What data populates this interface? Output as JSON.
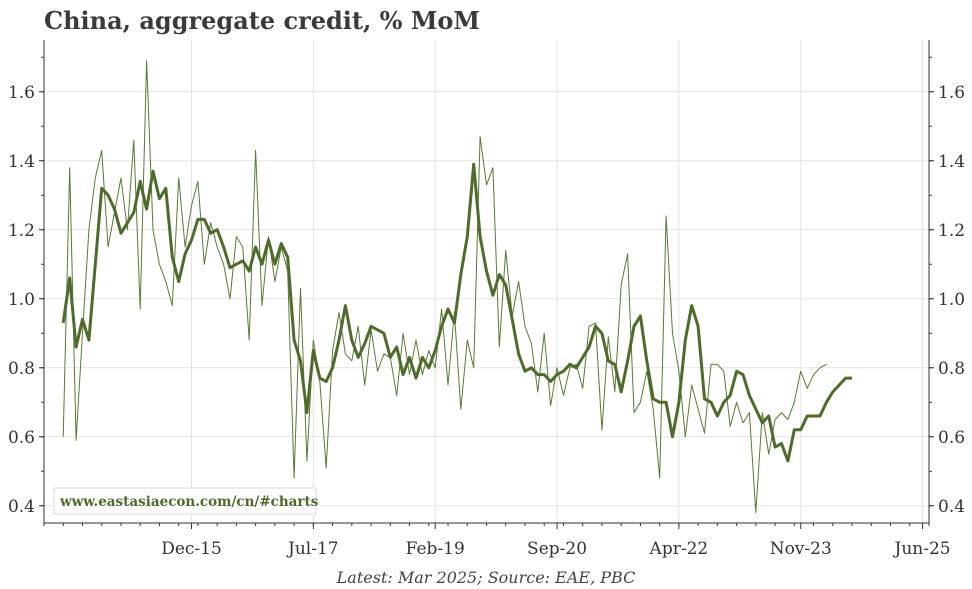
{
  "title": "China, aggregate credit, % MoM",
  "caption": "Latest: Mar 2025; Source: EAE, PBC",
  "watermark": "www.eastasiaecon.com/cn/#charts",
  "colors": {
    "raw_series": "#587a34",
    "smoothed_series": "#4e6b2c",
    "grid": "#e3e3e3",
    "axis": "#333333"
  },
  "chart_data": {
    "type": "line",
    "title": "China, aggregate credit, % MoM",
    "xlabel": "",
    "ylabel": "",
    "ylim": [
      0.35,
      1.75
    ],
    "xlim": [
      "2014-01",
      "2025-07"
    ],
    "yticks": [
      0.4,
      0.6,
      0.8,
      1.0,
      1.2,
      1.4,
      1.6
    ],
    "ytick_labels": [
      "0.4",
      "0.6",
      "0.8",
      "1.0",
      "1.2",
      "1.4",
      "1.6"
    ],
    "xticks": [
      "2015-12",
      "2017-07",
      "2019-02",
      "2020-09",
      "2022-04",
      "2023-11",
      "2025-06"
    ],
    "xtick_labels": [
      "Dec-15",
      "Jul-17",
      "Feb-19",
      "Sep-20",
      "Apr-22",
      "Nov-23",
      "Jun-25"
    ],
    "grid": true,
    "legend": "none",
    "y_axis_sides": [
      "left",
      "right"
    ],
    "series": [
      {
        "style": "thin",
        "points": [
          [
            "2014-04",
            0.6
          ],
          [
            "2014-05",
            1.38
          ],
          [
            "2014-06",
            0.59
          ],
          [
            "2014-07",
            0.9
          ],
          [
            "2014-08",
            1.2
          ],
          [
            "2014-09",
            1.35
          ],
          [
            "2014-10",
            1.43
          ],
          [
            "2014-11",
            1.15
          ],
          [
            "2014-12",
            1.25
          ],
          [
            "2015-01",
            1.35
          ],
          [
            "2015-02",
            1.2
          ],
          [
            "2015-03",
            1.46
          ],
          [
            "2015-04",
            0.97
          ],
          [
            "2015-05",
            1.69
          ],
          [
            "2015-06",
            1.2
          ],
          [
            "2015-07",
            1.1
          ],
          [
            "2015-08",
            1.05
          ],
          [
            "2015-09",
            0.98
          ],
          [
            "2015-10",
            1.35
          ],
          [
            "2015-11",
            1.15
          ],
          [
            "2015-12",
            1.27
          ],
          [
            "2016-01",
            1.34
          ],
          [
            "2016-02",
            1.1
          ],
          [
            "2016-03",
            1.22
          ],
          [
            "2016-04",
            1.15
          ],
          [
            "2016-05",
            1.1
          ],
          [
            "2016-06",
            1.0
          ],
          [
            "2016-07",
            1.18
          ],
          [
            "2016-08",
            1.15
          ],
          [
            "2016-09",
            0.88
          ],
          [
            "2016-10",
            1.43
          ],
          [
            "2016-11",
            0.98
          ],
          [
            "2016-12",
            1.18
          ],
          [
            "2017-01",
            1.05
          ],
          [
            "2017-02",
            1.15
          ],
          [
            "2017-03",
            1.08
          ],
          [
            "2017-04",
            0.48
          ],
          [
            "2017-05",
            1.03
          ],
          [
            "2017-06",
            0.53
          ],
          [
            "2017-07",
            0.88
          ],
          [
            "2017-08",
            0.76
          ],
          [
            "2017-09",
            0.51
          ],
          [
            "2017-10",
            0.85
          ],
          [
            "2017-11",
            0.96
          ],
          [
            "2017-12",
            0.84
          ],
          [
            "2018-01",
            0.82
          ],
          [
            "2018-02",
            0.92
          ],
          [
            "2018-03",
            0.75
          ],
          [
            "2018-04",
            0.91
          ],
          [
            "2018-05",
            0.79
          ],
          [
            "2018-06",
            0.84
          ],
          [
            "2018-07",
            0.83
          ],
          [
            "2018-08",
            0.72
          ],
          [
            "2018-09",
            0.9
          ],
          [
            "2018-10",
            0.78
          ],
          [
            "2018-11",
            0.88
          ],
          [
            "2018-12",
            0.78
          ],
          [
            "2019-01",
            0.85
          ],
          [
            "2019-02",
            0.8
          ],
          [
            "2019-03",
            0.97
          ],
          [
            "2019-04",
            0.75
          ],
          [
            "2019-05",
            0.96
          ],
          [
            "2019-06",
            0.68
          ],
          [
            "2019-07",
            0.88
          ],
          [
            "2019-08",
            0.8
          ],
          [
            "2019-09",
            1.47
          ],
          [
            "2019-10",
            1.33
          ],
          [
            "2019-11",
            1.38
          ],
          [
            "2019-12",
            0.86
          ],
          [
            "2020-01",
            1.14
          ],
          [
            "2020-02",
            0.95
          ],
          [
            "2020-03",
            1.05
          ],
          [
            "2020-04",
            0.92
          ],
          [
            "2020-05",
            0.87
          ],
          [
            "2020-06",
            0.73
          ],
          [
            "2020-07",
            0.9
          ],
          [
            "2020-08",
            0.69
          ],
          [
            "2020-09",
            0.8
          ],
          [
            "2020-10",
            0.72
          ],
          [
            "2020-11",
            0.8
          ],
          [
            "2020-12",
            0.81
          ],
          [
            "2021-01",
            0.74
          ],
          [
            "2021-02",
            0.92
          ],
          [
            "2021-03",
            0.93
          ],
          [
            "2021-04",
            0.62
          ],
          [
            "2021-05",
            0.89
          ],
          [
            "2021-06",
            0.73
          ],
          [
            "2021-07",
            1.04
          ],
          [
            "2021-08",
            1.13
          ],
          [
            "2021-09",
            0.67
          ],
          [
            "2021-10",
            0.7
          ],
          [
            "2021-11",
            0.79
          ],
          [
            "2021-12",
            0.68
          ],
          [
            "2022-01",
            0.48
          ],
          [
            "2022-02",
            1.24
          ],
          [
            "2022-03",
            0.9
          ],
          [
            "2022-04",
            0.79
          ],
          [
            "2022-05",
            0.6
          ],
          [
            "2022-06",
            0.75
          ],
          [
            "2022-07",
            0.68
          ],
          [
            "2022-08",
            0.61
          ],
          [
            "2022-09",
            0.81
          ],
          [
            "2022-10",
            0.81
          ],
          [
            "2022-11",
            0.79
          ],
          [
            "2022-12",
            0.63
          ],
          [
            "2023-01",
            0.7
          ],
          [
            "2023-02",
            0.64
          ],
          [
            "2023-03",
            0.67
          ],
          [
            "2023-04",
            0.38
          ],
          [
            "2023-05",
            0.67
          ],
          [
            "2023-06",
            0.55
          ],
          [
            "2023-07",
            0.65
          ],
          [
            "2023-08",
            0.67
          ],
          [
            "2023-09",
            0.65
          ],
          [
            "2023-10",
            0.7
          ],
          [
            "2023-11",
            0.79
          ],
          [
            "2023-12",
            0.74
          ],
          [
            "2024-01",
            0.78
          ],
          [
            "2024-02",
            0.8
          ],
          [
            "2024-03",
            0.81
          ]
        ]
      },
      {
        "style": "thick",
        "points": [
          [
            "2014-04",
            0.93
          ],
          [
            "2014-05",
            1.06
          ],
          [
            "2014-06",
            0.86
          ],
          [
            "2014-07",
            0.94
          ],
          [
            "2014-08",
            0.88
          ],
          [
            "2014-09",
            1.1
          ],
          [
            "2014-10",
            1.32
          ],
          [
            "2014-11",
            1.3
          ],
          [
            "2014-12",
            1.26
          ],
          [
            "2015-01",
            1.19
          ],
          [
            "2015-02",
            1.22
          ],
          [
            "2015-03",
            1.25
          ],
          [
            "2015-04",
            1.34
          ],
          [
            "2015-05",
            1.26
          ],
          [
            "2015-06",
            1.37
          ],
          [
            "2015-07",
            1.29
          ],
          [
            "2015-08",
            1.32
          ],
          [
            "2015-09",
            1.12
          ],
          [
            "2015-10",
            1.05
          ],
          [
            "2015-11",
            1.13
          ],
          [
            "2015-12",
            1.17
          ],
          [
            "2016-01",
            1.23
          ],
          [
            "2016-02",
            1.23
          ],
          [
            "2016-03",
            1.19
          ],
          [
            "2016-04",
            1.2
          ],
          [
            "2016-05",
            1.15
          ],
          [
            "2016-06",
            1.09
          ],
          [
            "2016-07",
            1.1
          ],
          [
            "2016-08",
            1.11
          ],
          [
            "2016-09",
            1.08
          ],
          [
            "2016-10",
            1.15
          ],
          [
            "2016-11",
            1.1
          ],
          [
            "2016-12",
            1.17
          ],
          [
            "2017-01",
            1.1
          ],
          [
            "2017-02",
            1.16
          ],
          [
            "2017-03",
            1.12
          ],
          [
            "2017-04",
            0.88
          ],
          [
            "2017-05",
            0.82
          ],
          [
            "2017-06",
            0.67
          ],
          [
            "2017-07",
            0.85
          ],
          [
            "2017-08",
            0.77
          ],
          [
            "2017-09",
            0.76
          ],
          [
            "2017-10",
            0.8
          ],
          [
            "2017-11",
            0.88
          ],
          [
            "2017-12",
            0.98
          ],
          [
            "2018-01",
            0.88
          ],
          [
            "2018-02",
            0.83
          ],
          [
            "2018-03",
            0.87
          ],
          [
            "2018-04",
            0.92
          ],
          [
            "2018-05",
            0.91
          ],
          [
            "2018-06",
            0.9
          ],
          [
            "2018-07",
            0.83
          ],
          [
            "2018-08",
            0.86
          ],
          [
            "2018-09",
            0.78
          ],
          [
            "2018-10",
            0.83
          ],
          [
            "2018-11",
            0.77
          ],
          [
            "2018-12",
            0.83
          ],
          [
            "2019-01",
            0.8
          ],
          [
            "2019-02",
            0.85
          ],
          [
            "2019-03",
            0.92
          ],
          [
            "2019-04",
            0.97
          ],
          [
            "2019-05",
            0.93
          ],
          [
            "2019-06",
            1.07
          ],
          [
            "2019-07",
            1.18
          ],
          [
            "2019-08",
            1.39
          ],
          [
            "2019-09",
            1.18
          ],
          [
            "2019-10",
            1.08
          ],
          [
            "2019-11",
            1.01
          ],
          [
            "2019-12",
            1.07
          ],
          [
            "2020-01",
            1.04
          ],
          [
            "2020-02",
            0.94
          ],
          [
            "2020-03",
            0.84
          ],
          [
            "2020-04",
            0.79
          ],
          [
            "2020-05",
            0.8
          ],
          [
            "2020-06",
            0.78
          ],
          [
            "2020-07",
            0.78
          ],
          [
            "2020-08",
            0.76
          ],
          [
            "2020-09",
            0.78
          ],
          [
            "2020-10",
            0.79
          ],
          [
            "2020-11",
            0.81
          ],
          [
            "2020-12",
            0.8
          ],
          [
            "2021-01",
            0.83
          ],
          [
            "2021-02",
            0.86
          ],
          [
            "2021-03",
            0.92
          ],
          [
            "2021-04",
            0.9
          ],
          [
            "2021-05",
            0.82
          ],
          [
            "2021-06",
            0.81
          ],
          [
            "2021-07",
            0.73
          ],
          [
            "2021-08",
            0.82
          ],
          [
            "2021-09",
            0.92
          ],
          [
            "2021-10",
            0.95
          ],
          [
            "2021-11",
            0.82
          ],
          [
            "2021-12",
            0.71
          ],
          [
            "2022-01",
            0.7
          ],
          [
            "2022-02",
            0.7
          ],
          [
            "2022-03",
            0.6
          ],
          [
            "2022-04",
            0.7
          ],
          [
            "2022-05",
            0.88
          ],
          [
            "2022-06",
            0.98
          ],
          [
            "2022-07",
            0.92
          ],
          [
            "2022-08",
            0.71
          ],
          [
            "2022-09",
            0.7
          ],
          [
            "2022-10",
            0.66
          ],
          [
            "2022-11",
            0.7
          ],
          [
            "2022-12",
            0.72
          ],
          [
            "2023-01",
            0.79
          ],
          [
            "2023-02",
            0.78
          ],
          [
            "2023-03",
            0.72
          ],
          [
            "2023-04",
            0.68
          ],
          [
            "2023-05",
            0.64
          ],
          [
            "2023-06",
            0.66
          ],
          [
            "2023-07",
            0.57
          ],
          [
            "2023-08",
            0.58
          ],
          [
            "2023-09",
            0.53
          ],
          [
            "2023-10",
            0.62
          ],
          [
            "2023-11",
            0.62
          ],
          [
            "2023-12",
            0.66
          ],
          [
            "2024-01",
            0.66
          ],
          [
            "2024-02",
            0.66
          ],
          [
            "2024-03",
            0.7
          ],
          [
            "2024-04",
            0.73
          ],
          [
            "2024-05",
            0.75
          ],
          [
            "2024-06",
            0.77
          ],
          [
            "2024-07",
            0.77
          ]
        ]
      }
    ]
  }
}
